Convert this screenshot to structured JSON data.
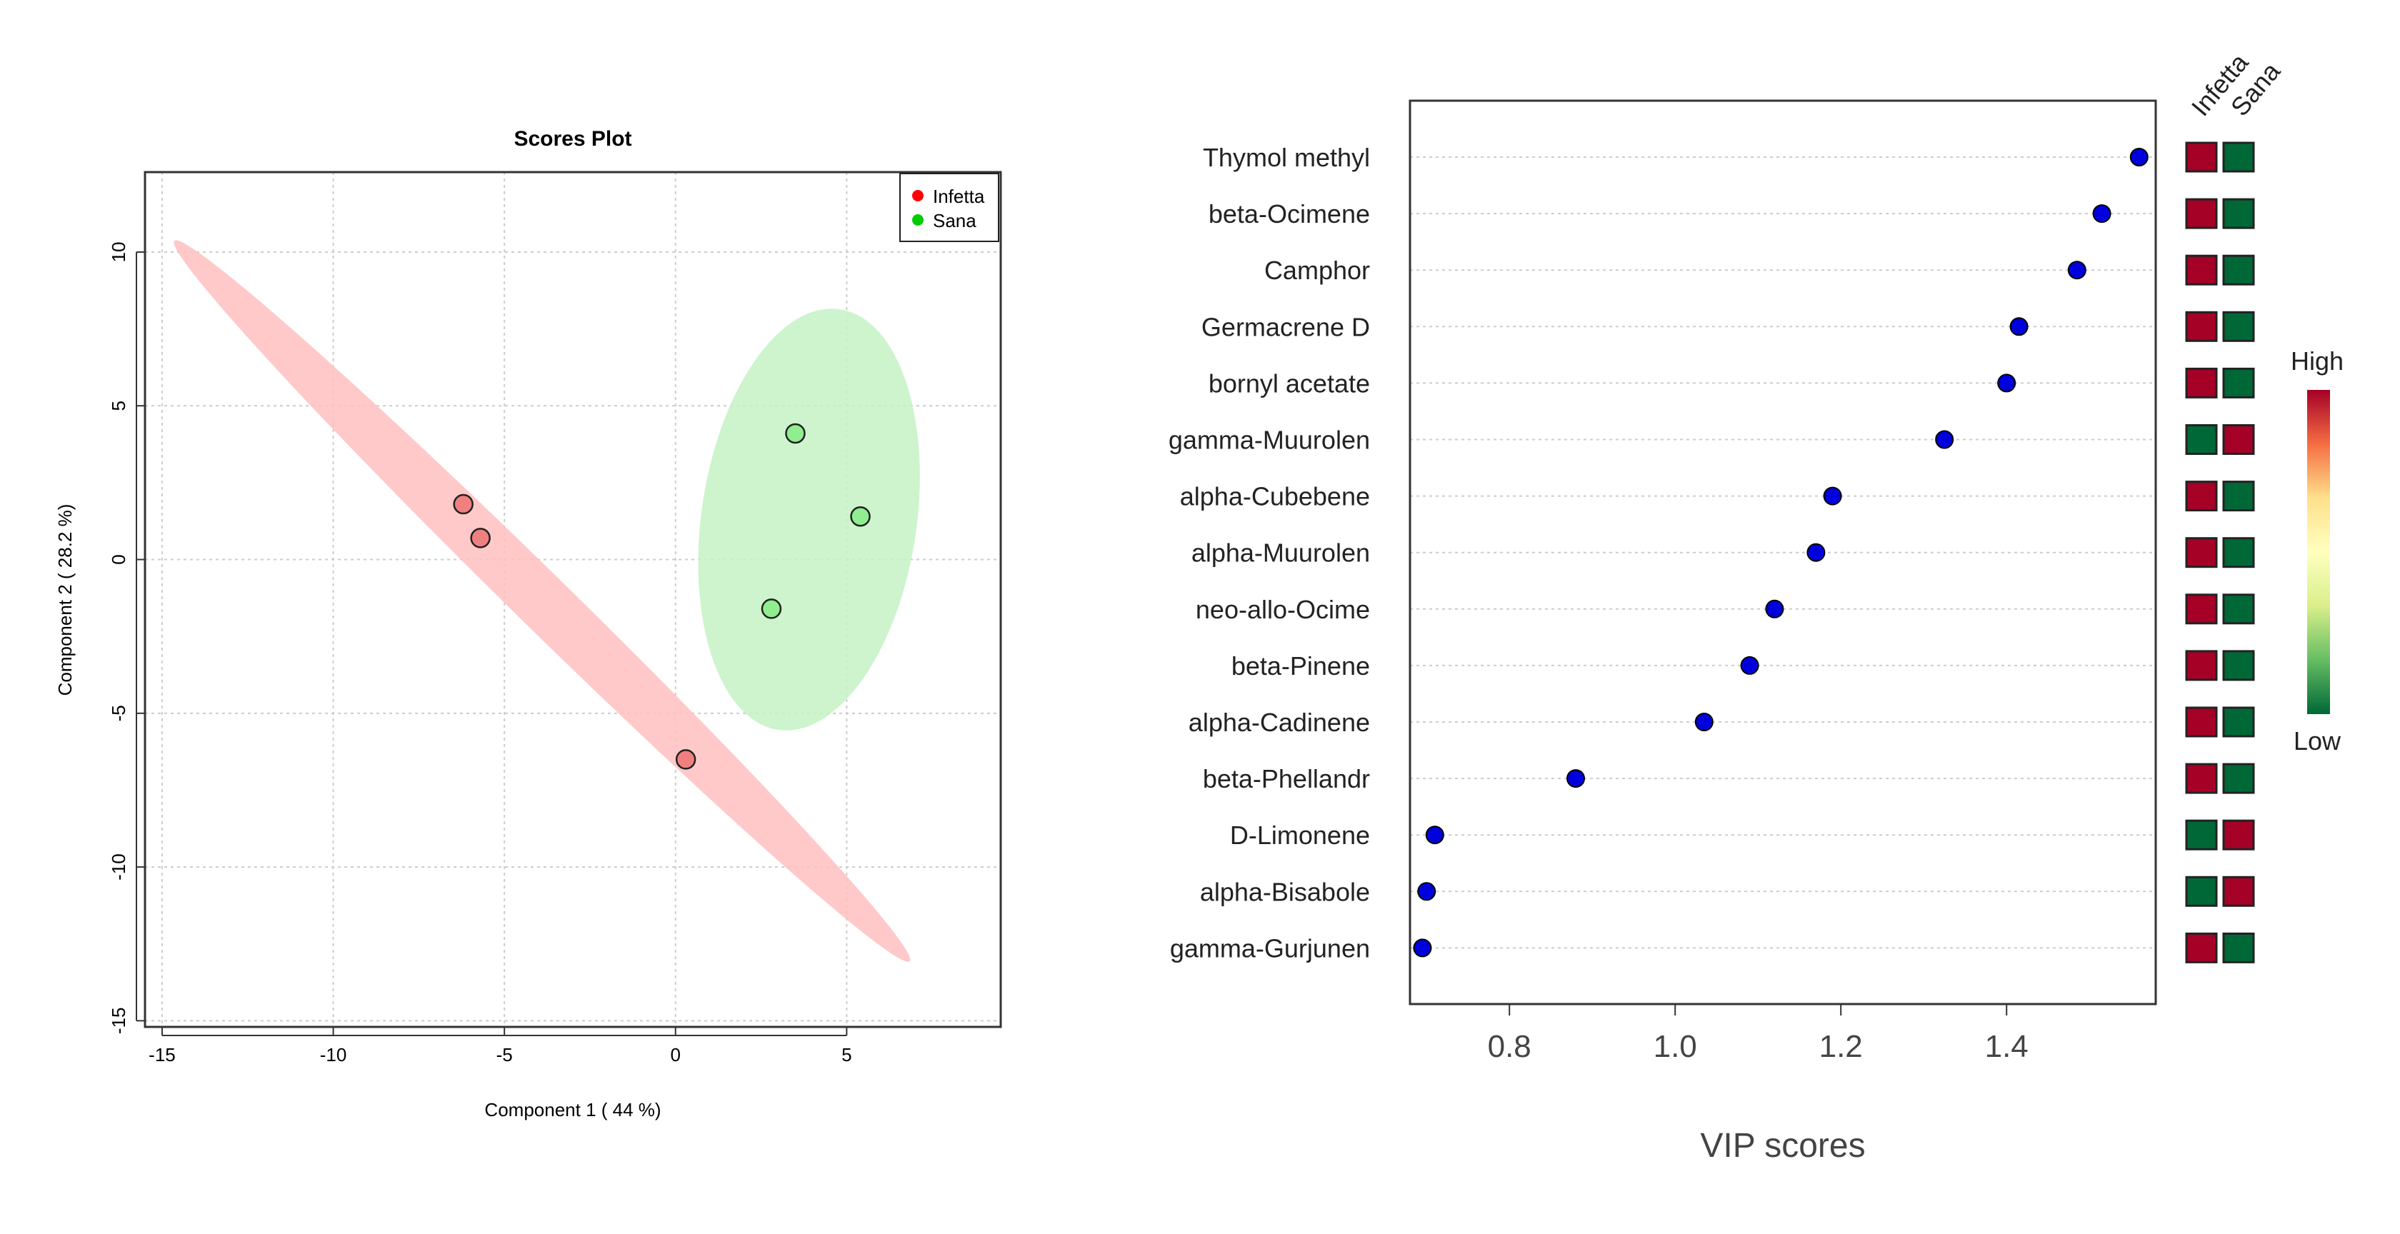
{
  "chart_data": [
    {
      "type": "scatter",
      "title": "Scores Plot",
      "xlabel": "Component 1 ( 44 %)",
      "ylabel": "Component 2 ( 28.2 %)",
      "xlim": [
        -15.5,
        9.5
      ],
      "ylim": [
        -15.2,
        12.6
      ],
      "x_ticks": [
        -15,
        -10,
        -5,
        0,
        5
      ],
      "y_ticks": [
        -15,
        -10,
        -5,
        0,
        5,
        10
      ],
      "grid": true,
      "legend_position": "top-right",
      "series": [
        {
          "name": "Infetta",
          "color": "#ff0000",
          "fill": "#f08080",
          "ellipse_fill": "#ffbfbf",
          "points": [
            [
              -6.2,
              1.8
            ],
            [
              -5.7,
              0.7
            ],
            [
              0.3,
              -6.5
            ]
          ],
          "ellipse": {
            "center": [
              -3.9,
              -1.35
            ],
            "semi_major": 15.9,
            "semi_minor": 0.85,
            "angle_deg": -47.5
          }
        },
        {
          "name": "Sana",
          "color": "#00cc00",
          "fill": "#90ee90",
          "ellipse_fill": "#c4f2c4",
          "points": [
            [
              3.5,
              4.1
            ],
            [
              5.4,
              1.4
            ],
            [
              2.8,
              -1.6
            ]
          ],
          "ellipse": {
            "center": [
              3.9,
              1.3
            ],
            "semi_major": 6.9,
            "semi_minor": 3.15,
            "angle_deg": 83
          }
        }
      ]
    },
    {
      "type": "scatter",
      "title": "",
      "xlabel": "VIP scores",
      "ylabel": "",
      "xlim": [
        0.68,
        1.58
      ],
      "x_ticks": [
        0.8,
        1.0,
        1.2,
        1.4
      ],
      "x_tick_labels": [
        "0.8",
        "1.0",
        "1.2",
        "1.4"
      ],
      "point_color": "#0000dd",
      "features": [
        {
          "name": "Thymol methyl",
          "vip": 1.56,
          "infetta": "high",
          "sana": "low"
        },
        {
          "name": "beta-Ocimene",
          "vip": 1.515,
          "infetta": "high",
          "sana": "low"
        },
        {
          "name": "Camphor",
          "vip": 1.485,
          "infetta": "high",
          "sana": "low"
        },
        {
          "name": "Germacrene D",
          "vip": 1.415,
          "infetta": "high",
          "sana": "low"
        },
        {
          "name": "bornyl acetate",
          "vip": 1.4,
          "infetta": "high",
          "sana": "low"
        },
        {
          "name": "gamma-Muurolen",
          "vip": 1.325,
          "infetta": "low",
          "sana": "high"
        },
        {
          "name": "alpha-Cubebene",
          "vip": 1.19,
          "infetta": "high",
          "sana": "low"
        },
        {
          "name": "alpha-Muurolen",
          "vip": 1.17,
          "infetta": "high",
          "sana": "low"
        },
        {
          "name": "neo-allo-Ocime",
          "vip": 1.12,
          "infetta": "high",
          "sana": "low"
        },
        {
          "name": "beta-Pinene",
          "vip": 1.09,
          "infetta": "high",
          "sana": "low"
        },
        {
          "name": "alpha-Cadinene",
          "vip": 1.035,
          "infetta": "high",
          "sana": "low"
        },
        {
          "name": "beta-Phellandr",
          "vip": 0.88,
          "infetta": "high",
          "sana": "low"
        },
        {
          "name": "D-Limonene",
          "vip": 0.71,
          "infetta": "low",
          "sana": "high"
        },
        {
          "name": "alpha-Bisabole",
          "vip": 0.7,
          "infetta": "low",
          "sana": "high"
        },
        {
          "name": "gamma-Gurjunen",
          "vip": 0.695,
          "infetta": "high",
          "sana": "low"
        }
      ],
      "heatmap_columns": [
        "Infetta",
        "Sana"
      ],
      "level_colors": {
        "high": "#a50026",
        "low": "#006837"
      },
      "color_scale": {
        "high_label": "High",
        "low_label": "Low",
        "stops": [
          "#a50026",
          "#f46d43",
          "#fee08b",
          "#ffffbf",
          "#d9ef8b",
          "#66bd63",
          "#006837"
        ]
      }
    }
  ]
}
